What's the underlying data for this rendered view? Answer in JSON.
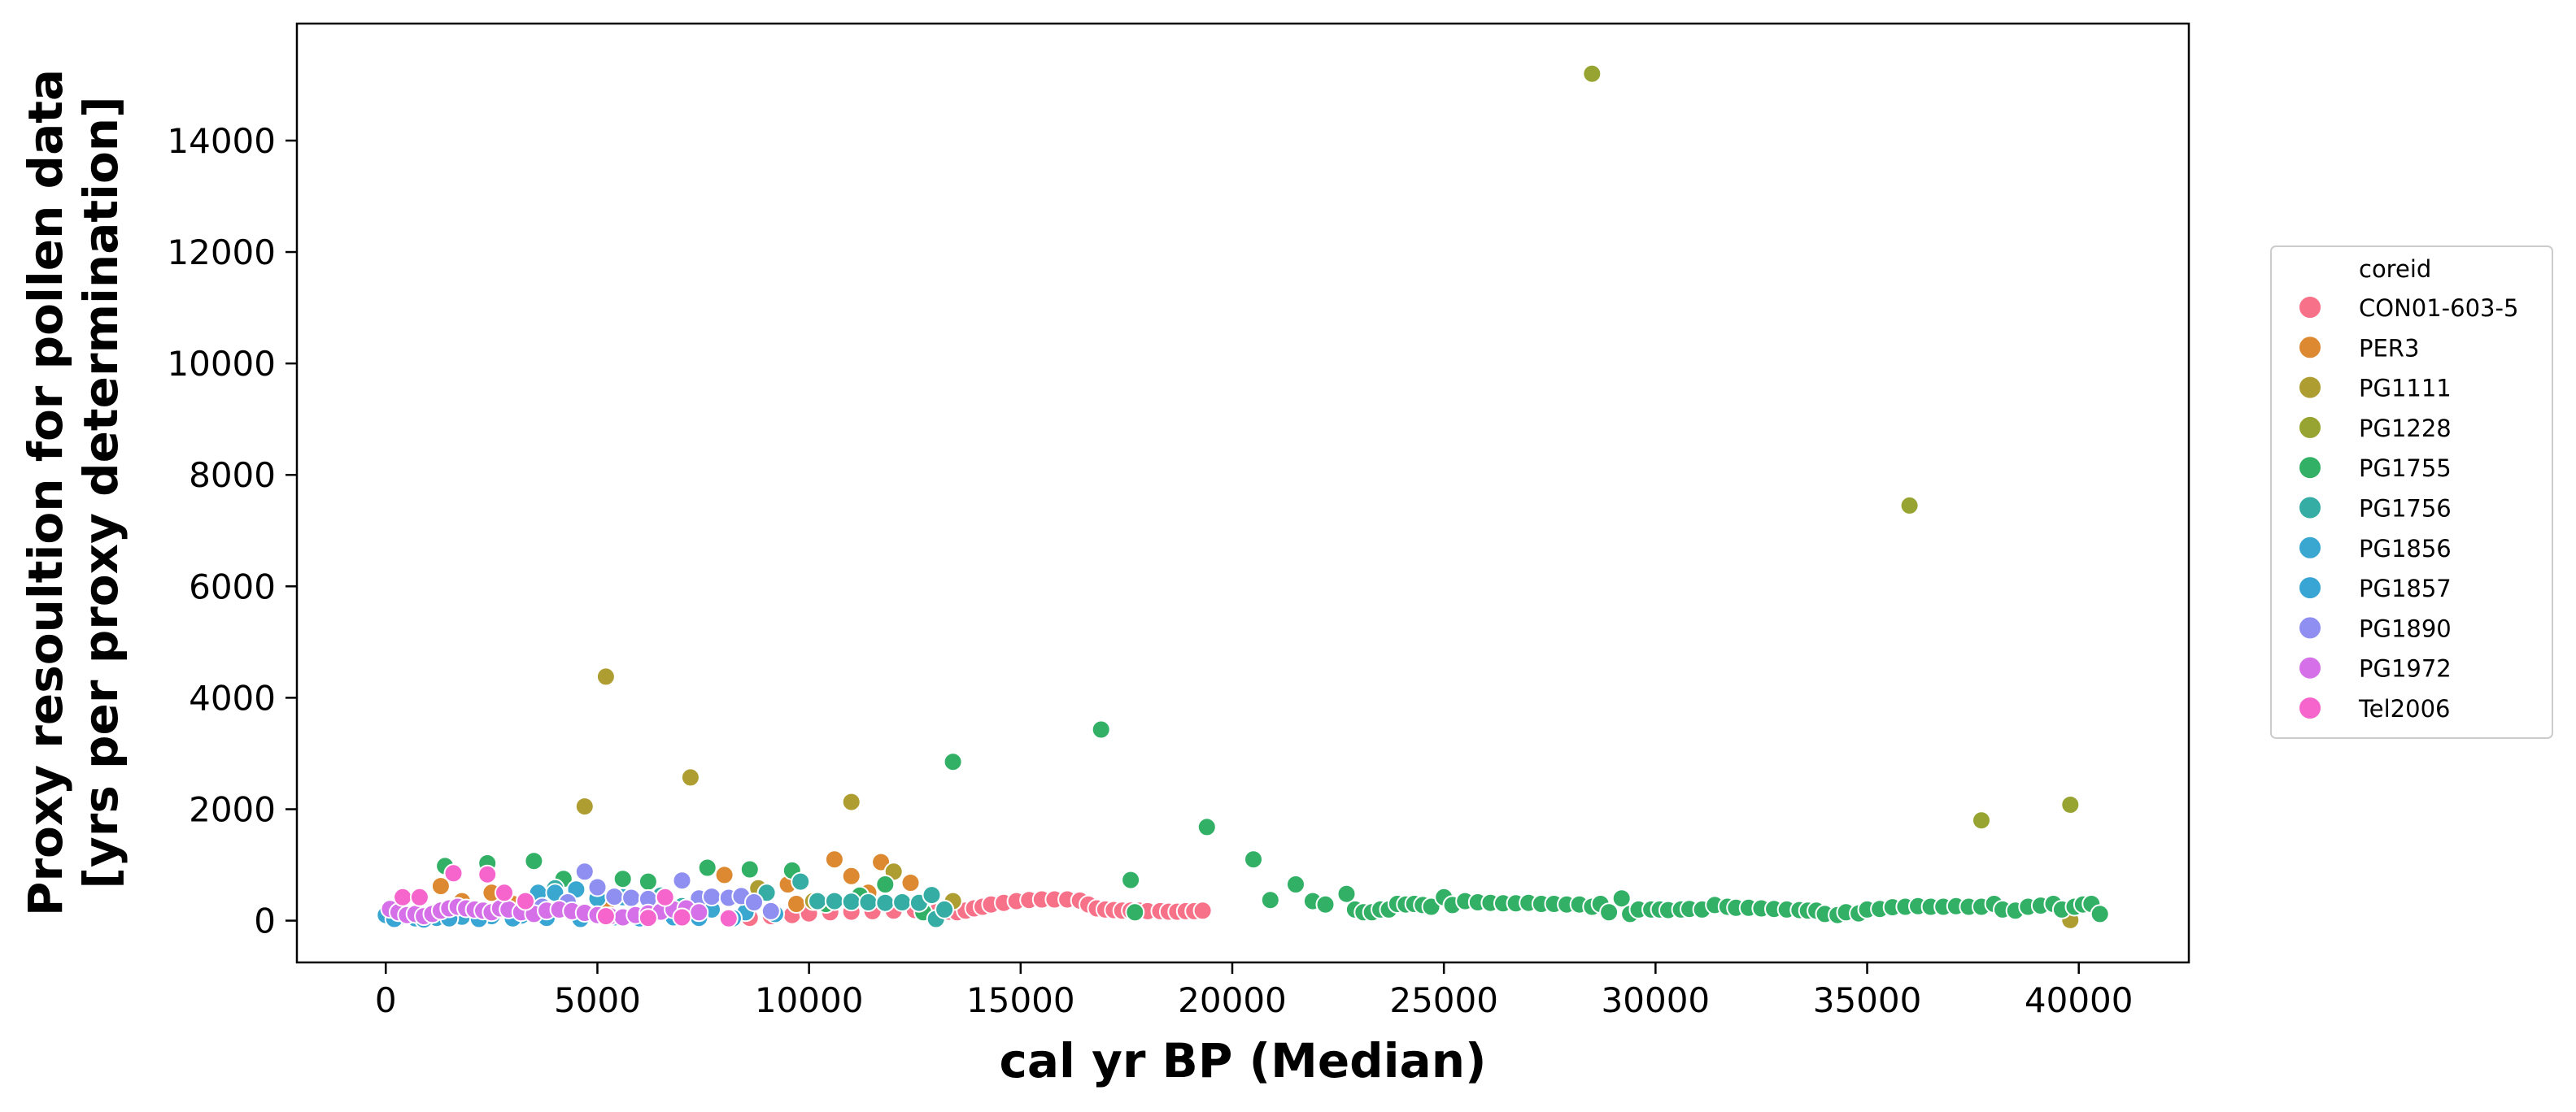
{
  "chart_data": {
    "type": "scatter",
    "xlabel": "cal yr BP (Median)",
    "ylabel_line1": "Proxy resoultion for pollen data",
    "ylabel_line2": "[yrs per proxy determination]",
    "xlim": [
      -2100,
      42600
    ],
    "ylim": [
      -750,
      16100
    ],
    "xticks": [
      0,
      5000,
      10000,
      15000,
      20000,
      25000,
      30000,
      35000,
      40000
    ],
    "yticks": [
      0,
      2000,
      4000,
      6000,
      8000,
      10000,
      12000,
      14000
    ],
    "grid": false,
    "legend": {
      "title": "coreid",
      "placement": "right"
    },
    "series": [
      {
        "name": "CON01-603-5",
        "color": "#f77189",
        "points": [
          [
            8600,
            50
          ],
          [
            9100,
            80
          ],
          [
            9600,
            100
          ],
          [
            10000,
            130
          ],
          [
            10500,
            150
          ],
          [
            11000,
            160
          ],
          [
            11500,
            170
          ],
          [
            12000,
            180
          ],
          [
            12500,
            190
          ],
          [
            13000,
            150
          ],
          [
            13300,
            160
          ],
          [
            13500,
            150
          ],
          [
            13700,
            180
          ],
          [
            13900,
            220
          ],
          [
            14100,
            250
          ],
          [
            14300,
            290
          ],
          [
            14600,
            320
          ],
          [
            14900,
            350
          ],
          [
            15200,
            370
          ],
          [
            15500,
            380
          ],
          [
            15800,
            380
          ],
          [
            16100,
            380
          ],
          [
            16400,
            360
          ],
          [
            16600,
            290
          ],
          [
            16800,
            220
          ],
          [
            17000,
            200
          ],
          [
            17200,
            190
          ],
          [
            17400,
            180
          ],
          [
            17600,
            180
          ],
          [
            17800,
            180
          ],
          [
            18000,
            170
          ],
          [
            18300,
            170
          ],
          [
            18500,
            160
          ],
          [
            18700,
            160
          ],
          [
            18900,
            170
          ],
          [
            19100,
            170
          ],
          [
            19300,
            180
          ]
        ]
      },
      {
        "name": "PER3",
        "color": "#dc8932",
        "points": [
          [
            1300,
            620
          ],
          [
            1800,
            350
          ],
          [
            2500,
            500
          ],
          [
            3000,
            300
          ],
          [
            5200,
            200
          ],
          [
            6200,
            150
          ],
          [
            8000,
            820
          ],
          [
            8600,
            400
          ],
          [
            9500,
            650
          ],
          [
            9700,
            300
          ],
          [
            10600,
            1100
          ],
          [
            11000,
            800
          ],
          [
            11400,
            500
          ],
          [
            11700,
            1050
          ],
          [
            12400,
            680
          ]
        ]
      },
      {
        "name": "PG1111",
        "color": "#ae9d31",
        "points": [
          [
            5200,
            4380
          ],
          [
            7200,
            2570
          ],
          [
            4700,
            2050
          ],
          [
            11000,
            2130
          ],
          [
            12000,
            880
          ],
          [
            13400,
            350
          ],
          [
            8800,
            580
          ],
          [
            10100,
            350
          ],
          [
            39800,
            10
          ]
        ]
      },
      {
        "name": "PG1228",
        "color": "#97a431",
        "points": [
          [
            28500,
            15200
          ],
          [
            36000,
            7450
          ],
          [
            37700,
            1800
          ],
          [
            39800,
            2080
          ]
        ]
      },
      {
        "name": "PG1755",
        "color": "#32b166",
        "points": [
          [
            1400,
            980
          ],
          [
            2400,
            1030
          ],
          [
            3500,
            1070
          ],
          [
            4200,
            750
          ],
          [
            5600,
            750
          ],
          [
            6200,
            700
          ],
          [
            7600,
            950
          ],
          [
            8600,
            920
          ],
          [
            9600,
            900
          ],
          [
            10400,
            300
          ],
          [
            11200,
            450
          ],
          [
            11800,
            650
          ],
          [
            12700,
            150
          ],
          [
            13400,
            2850
          ],
          [
            16900,
            3430
          ],
          [
            17600,
            730
          ],
          [
            17700,
            150
          ],
          [
            19400,
            1680
          ],
          [
            20500,
            1100
          ],
          [
            20900,
            370
          ],
          [
            21500,
            650
          ],
          [
            21900,
            350
          ],
          [
            22200,
            290
          ],
          [
            22700,
            480
          ],
          [
            22900,
            200
          ],
          [
            23100,
            150
          ],
          [
            23300,
            150
          ],
          [
            23500,
            200
          ],
          [
            23700,
            200
          ],
          [
            23900,
            300
          ],
          [
            24100,
            290
          ],
          [
            24300,
            300
          ],
          [
            24500,
            280
          ],
          [
            24700,
            250
          ],
          [
            25000,
            420
          ],
          [
            25200,
            280
          ],
          [
            25500,
            350
          ],
          [
            25800,
            330
          ],
          [
            26100,
            320
          ],
          [
            26400,
            310
          ],
          [
            26700,
            310
          ],
          [
            27000,
            320
          ],
          [
            27300,
            300
          ],
          [
            27600,
            300
          ],
          [
            27900,
            290
          ],
          [
            28200,
            290
          ],
          [
            28500,
            250
          ],
          [
            28700,
            300
          ],
          [
            28900,
            150
          ],
          [
            29200,
            400
          ],
          [
            29400,
            120
          ],
          [
            29600,
            200
          ],
          [
            29900,
            200
          ],
          [
            30100,
            200
          ],
          [
            30300,
            190
          ],
          [
            30600,
            200
          ],
          [
            30800,
            210
          ],
          [
            31100,
            200
          ],
          [
            31400,
            280
          ],
          [
            31700,
            250
          ],
          [
            31900,
            230
          ],
          [
            32200,
            230
          ],
          [
            32500,
            220
          ],
          [
            32800,
            210
          ],
          [
            33100,
            200
          ],
          [
            33400,
            190
          ],
          [
            33600,
            180
          ],
          [
            33800,
            180
          ],
          [
            34000,
            120
          ],
          [
            34300,
            100
          ],
          [
            34500,
            150
          ],
          [
            34800,
            130
          ],
          [
            35000,
            200
          ],
          [
            35300,
            210
          ],
          [
            35600,
            240
          ],
          [
            35900,
            250
          ],
          [
            36200,
            260
          ],
          [
            36500,
            250
          ],
          [
            36800,
            250
          ],
          [
            37100,
            260
          ],
          [
            37400,
            250
          ],
          [
            37700,
            250
          ],
          [
            38000,
            300
          ],
          [
            38200,
            200
          ],
          [
            38500,
            180
          ],
          [
            38800,
            250
          ],
          [
            39100,
            270
          ],
          [
            39400,
            300
          ],
          [
            39600,
            200
          ],
          [
            39900,
            250
          ],
          [
            40100,
            290
          ],
          [
            40300,
            300
          ],
          [
            40500,
            120
          ]
        ]
      },
      {
        "name": "PG1756",
        "color": "#36ada4",
        "points": [
          [
            4000,
            580
          ],
          [
            6500,
            450
          ],
          [
            7000,
            260
          ],
          [
            9000,
            500
          ],
          [
            9800,
            700
          ],
          [
            10200,
            350
          ],
          [
            10600,
            350
          ],
          [
            11000,
            340
          ],
          [
            11400,
            330
          ],
          [
            11800,
            320
          ],
          [
            12200,
            330
          ],
          [
            12600,
            320
          ],
          [
            12900,
            460
          ],
          [
            13000,
            30
          ],
          [
            13200,
            200
          ]
        ]
      },
      {
        "name": "PG1856",
        "color": "#39a7d0",
        "points": [
          [
            0,
            100
          ],
          [
            300,
            60
          ],
          [
            700,
            40
          ],
          [
            1200,
            50
          ],
          [
            1800,
            70
          ],
          [
            2500,
            80
          ],
          [
            3200,
            90
          ],
          [
            3600,
            500
          ],
          [
            4000,
            500
          ],
          [
            4500,
            560
          ],
          [
            5000,
            400
          ],
          [
            5600,
            420
          ],
          [
            6300,
            250
          ],
          [
            7100,
            220
          ],
          [
            7700,
            200
          ],
          [
            8500,
            150
          ],
          [
            9200,
            120
          ]
        ]
      },
      {
        "name": "PG1857",
        "color": "#38a5d4",
        "points": [
          [
            200,
            30
          ],
          [
            900,
            20
          ],
          [
            1500,
            40
          ],
          [
            2200,
            30
          ],
          [
            3000,
            40
          ],
          [
            3800,
            50
          ],
          [
            4600,
            30
          ],
          [
            5400,
            60
          ],
          [
            6000,
            40
          ],
          [
            6800,
            60
          ],
          [
            7400,
            50
          ],
          [
            8200,
            40
          ]
        ]
      },
      {
        "name": "PG1890",
        "color": "#8e8ff0",
        "points": [
          [
            4700,
            880
          ],
          [
            5000,
            600
          ],
          [
            5400,
            430
          ],
          [
            5800,
            410
          ],
          [
            6200,
            390
          ],
          [
            6600,
            400
          ],
          [
            7000,
            720
          ],
          [
            7400,
            400
          ],
          [
            7700,
            430
          ],
          [
            8100,
            410
          ],
          [
            8400,
            440
          ],
          [
            8700,
            330
          ],
          [
            9100,
            170
          ],
          [
            4300,
            330
          ],
          [
            3700,
            250
          ]
        ]
      },
      {
        "name": "PG1972",
        "color": "#d670e8",
        "points": [
          [
            100,
            210
          ],
          [
            300,
            150
          ],
          [
            500,
            100
          ],
          [
            700,
            120
          ],
          [
            900,
            80
          ],
          [
            1100,
            120
          ],
          [
            1300,
            180
          ],
          [
            1500,
            220
          ],
          [
            1700,
            250
          ],
          [
            1900,
            220
          ],
          [
            2100,
            200
          ],
          [
            2300,
            180
          ],
          [
            2500,
            150
          ],
          [
            2700,
            220
          ],
          [
            2900,
            200
          ],
          [
            3200,
            150
          ],
          [
            3500,
            120
          ],
          [
            3800,
            180
          ],
          [
            4100,
            200
          ],
          [
            4400,
            170
          ],
          [
            4700,
            140
          ],
          [
            5000,
            100
          ],
          [
            5300,
            80
          ],
          [
            5600,
            60
          ],
          [
            5900,
            100
          ],
          [
            6200,
            130
          ],
          [
            6500,
            160
          ],
          [
            6800,
            200
          ],
          [
            7100,
            220
          ],
          [
            7400,
            150
          ]
        ]
      },
      {
        "name": "Tel2006",
        "color": "#f565cc",
        "points": [
          [
            400,
            420
          ],
          [
            800,
            420
          ],
          [
            1600,
            850
          ],
          [
            2400,
            830
          ],
          [
            2800,
            500
          ],
          [
            3300,
            350
          ],
          [
            5200,
            80
          ],
          [
            6200,
            50
          ],
          [
            6600,
            420
          ],
          [
            7000,
            60
          ],
          [
            8100,
            40
          ]
        ]
      }
    ]
  }
}
